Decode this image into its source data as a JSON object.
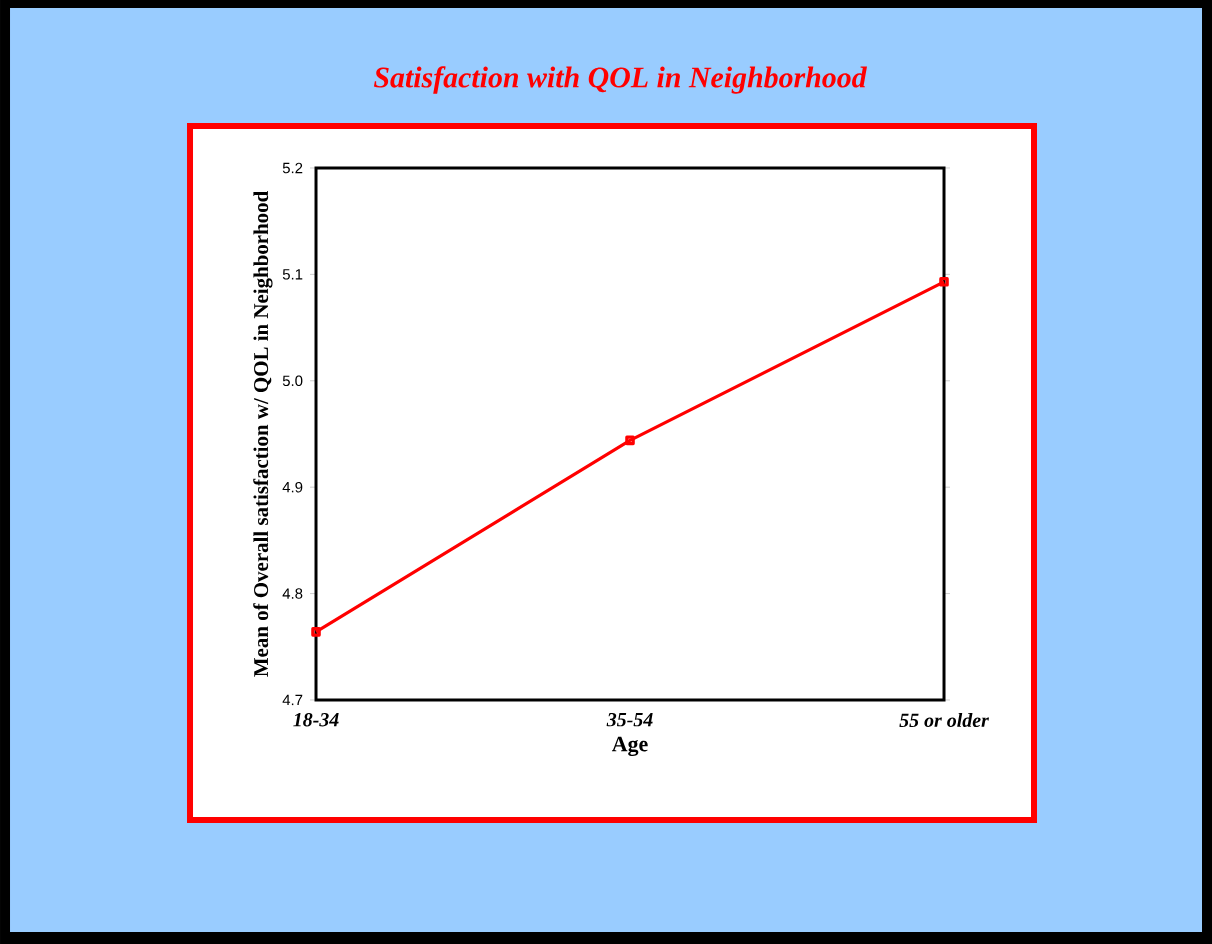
{
  "chart_data": {
    "type": "line",
    "title": "Satisfaction with QOL in Neighborhood",
    "xlabel": "Age",
    "ylabel": "Mean of Overall satisfaction w/ QOL in Neighborhood",
    "categories": [
      "18-34",
      "35-54",
      "55 or older"
    ],
    "values": [
      4.764,
      4.944,
      5.093
    ],
    "color": "#ff0000",
    "marker": "square",
    "ylim": [
      4.7,
      5.2
    ],
    "yticks": [
      4.7,
      4.8,
      4.9,
      {
        "value": 5.0,
        "label": "5.0"
      },
      5.1,
      5.2
    ]
  }
}
